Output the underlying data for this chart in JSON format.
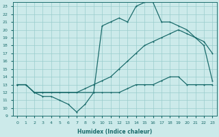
{
  "xlabel": "Humidex (Indice chaleur)",
  "xlim": [
    -0.5,
    23.5
  ],
  "ylim": [
    9,
    23.5
  ],
  "xticks": [
    0,
    1,
    2,
    3,
    4,
    5,
    6,
    7,
    8,
    9,
    10,
    11,
    12,
    13,
    14,
    15,
    16,
    17,
    18,
    19,
    20,
    21,
    22,
    23
  ],
  "yticks": [
    9,
    10,
    11,
    12,
    13,
    14,
    15,
    16,
    17,
    18,
    19,
    20,
    21,
    22,
    23
  ],
  "bg_color": "#cceaea",
  "grid_color": "#99cccc",
  "line_color": "#1a6b6b",
  "line1_x": [
    0,
    1,
    2,
    3,
    4,
    5,
    6,
    7,
    8,
    9,
    10,
    11,
    12,
    13,
    14,
    15,
    16,
    17,
    18,
    19,
    20,
    21,
    22,
    23
  ],
  "line1_y": [
    13,
    13,
    12,
    11.5,
    11.5,
    11,
    10.5,
    9.5,
    10.5,
    12,
    12,
    12,
    12,
    12.5,
    13,
    13,
    13,
    13.5,
    14,
    14,
    13,
    13,
    13,
    13
  ],
  "line2_x": [
    0,
    1,
    2,
    3,
    4,
    5,
    6,
    7,
    8,
    9,
    10,
    11,
    12,
    13,
    14,
    15,
    16,
    17,
    18,
    19,
    20,
    21,
    22,
    23
  ],
  "line2_y": [
    13,
    13,
    12,
    12,
    12,
    12,
    12,
    12,
    12.5,
    13,
    13.5,
    14,
    15,
    16,
    17,
    18,
    18.5,
    19,
    19.5,
    20,
    19.5,
    19,
    18,
    13.5
  ],
  "line3_x": [
    0,
    1,
    2,
    3,
    9,
    10,
    11,
    12,
    13,
    14,
    15,
    16,
    17,
    18,
    19,
    20,
    21,
    22,
    23
  ],
  "line3_y": [
    13,
    13,
    12,
    12,
    12,
    20.5,
    21,
    21.5,
    21,
    23,
    23.5,
    23.5,
    21,
    21,
    20.5,
    20,
    19,
    18.5,
    17
  ]
}
